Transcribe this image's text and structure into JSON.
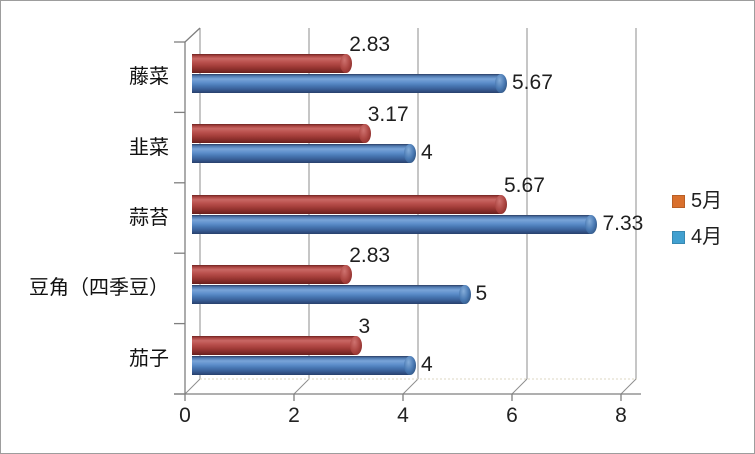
{
  "chart_data": {
    "type": "bar",
    "subtype": "cylinder-3d-horizontal",
    "title": "",
    "xlabel": "",
    "ylabel": "",
    "categories": [
      "藤菜",
      "韭菜",
      "蒜苔",
      "豆角（四季豆）",
      "茄子"
    ],
    "series": [
      {
        "name": "5月",
        "values": [
          2.83,
          3.17,
          5.67,
          2.83,
          3
        ],
        "labels": [
          "2.83",
          "3.17",
          "5.67",
          "2.83",
          "3"
        ],
        "bar_color": "#b04a46",
        "legend_color": "#d9702d"
      },
      {
        "name": "4月",
        "values": [
          5.67,
          4,
          7.33,
          5,
          4
        ],
        "labels": [
          "5.67",
          "4",
          "7.33",
          "5",
          "4"
        ],
        "bar_color": "#4a7ab6",
        "legend_color": "#41a0d0"
      }
    ],
    "xlim": [
      0,
      8
    ],
    "x_ticks": [
      0,
      2,
      4,
      6,
      8
    ],
    "x_tick_labels": [
      "0",
      "2",
      "4",
      "6",
      "8"
    ],
    "grid": true,
    "legend_position": "right"
  },
  "colors": {
    "background": "#ffffff",
    "border": "#9d9d9d",
    "gridline": "#8e8e8e",
    "axis": "#7f7f7f",
    "text": "#1f1f1f"
  }
}
